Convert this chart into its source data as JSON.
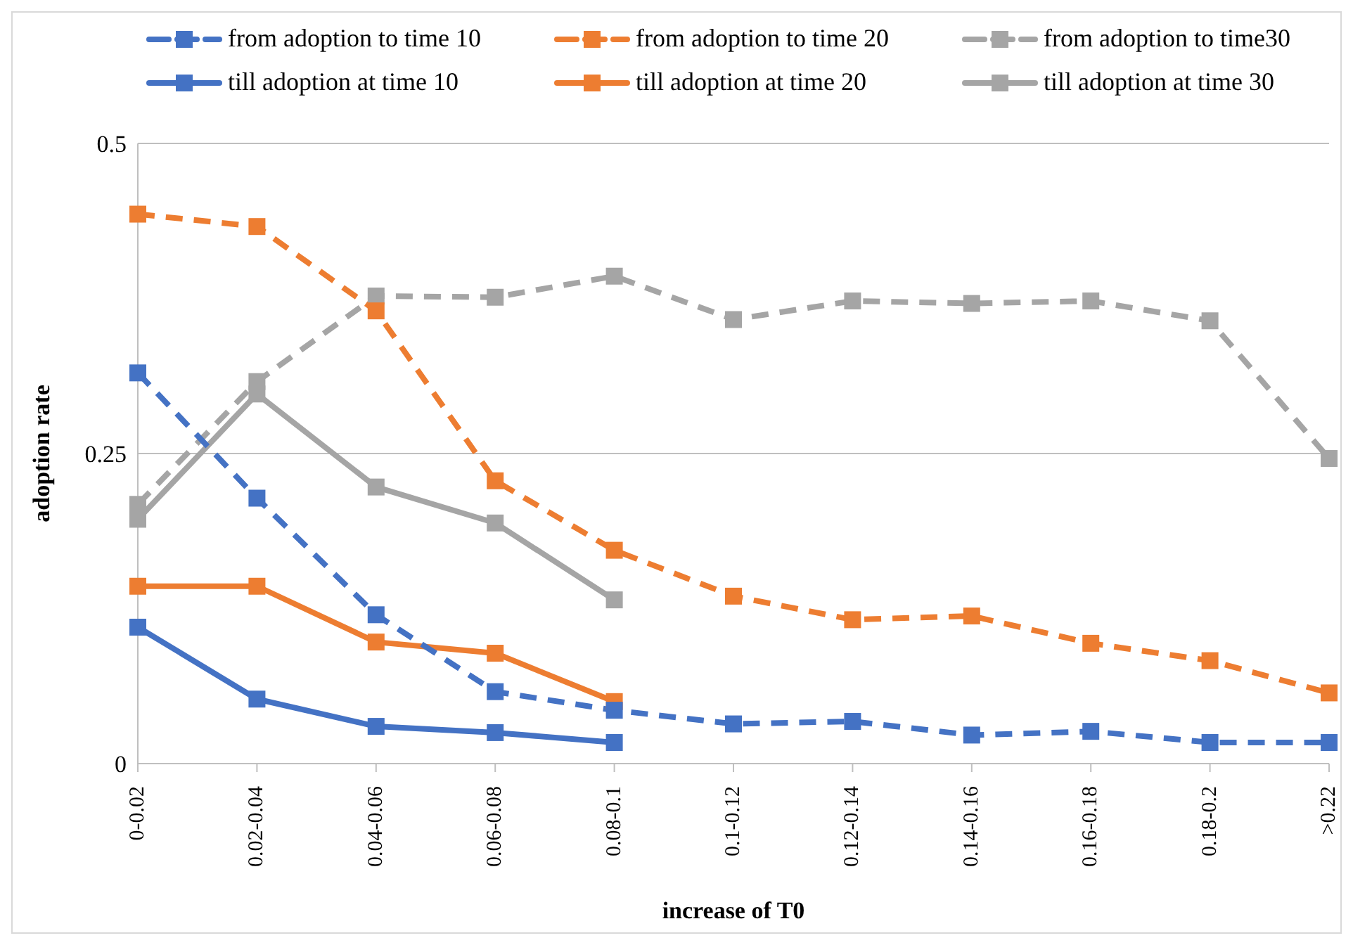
{
  "chart_data": {
    "type": "line",
    "xlabel": "increase of T0",
    "ylabel": "adoption rate",
    "categories": [
      "0-0.02",
      "0.02-0.04",
      "0.04-0.06",
      "0.06-0.08",
      "0.08-0.1",
      "0.1-0.12",
      "0.12-0.14",
      "0.14-0.16",
      "0.16-0.18",
      "0.18-0.2",
      ">0.22"
    ],
    "series": [
      {
        "name": "from adoption to time 10",
        "color": "#4472c4",
        "line_style": "dashed",
        "values": [
          0.315,
          0.214,
          0.12,
          0.058,
          0.043,
          0.032,
          0.034,
          0.023,
          0.026,
          0.017,
          0.017
        ]
      },
      {
        "name": "from adoption to time 20",
        "color": "#ed7d31",
        "line_style": "dashed",
        "values": [
          0.443,
          0.433,
          0.365,
          0.228,
          0.172,
          0.135,
          0.116,
          0.119,
          0.097,
          0.083,
          0.057
        ]
      },
      {
        "name": "from adoption to time30",
        "color": "#a5a5a5",
        "line_style": "dashed",
        "values": [
          0.209,
          0.308,
          0.377,
          0.376,
          0.393,
          0.358,
          0.373,
          0.371,
          0.373,
          0.357,
          0.246
        ]
      },
      {
        "name": "till adoption at time 10",
        "color": "#4472c4",
        "line_style": "solid",
        "values": [
          0.11,
          0.052,
          0.03,
          0.025,
          0.017,
          null,
          null,
          null,
          null,
          null,
          null
        ]
      },
      {
        "name": "till adoption at time 20",
        "color": "#ed7d31",
        "line_style": "solid",
        "values": [
          0.143,
          0.143,
          0.098,
          0.089,
          0.05,
          null,
          null,
          null,
          null,
          null,
          null
        ]
      },
      {
        "name": "till adoption at time 30",
        "color": "#a5a5a5",
        "line_style": "solid",
        "values": [
          0.197,
          0.298,
          0.223,
          0.194,
          0.132,
          null,
          null,
          null,
          null,
          null,
          null
        ]
      }
    ],
    "ylim": [
      0,
      0.5
    ],
    "yticks": [
      0,
      0.25,
      0.5
    ],
    "grid": "y",
    "legend": "top",
    "marker": "square"
  }
}
